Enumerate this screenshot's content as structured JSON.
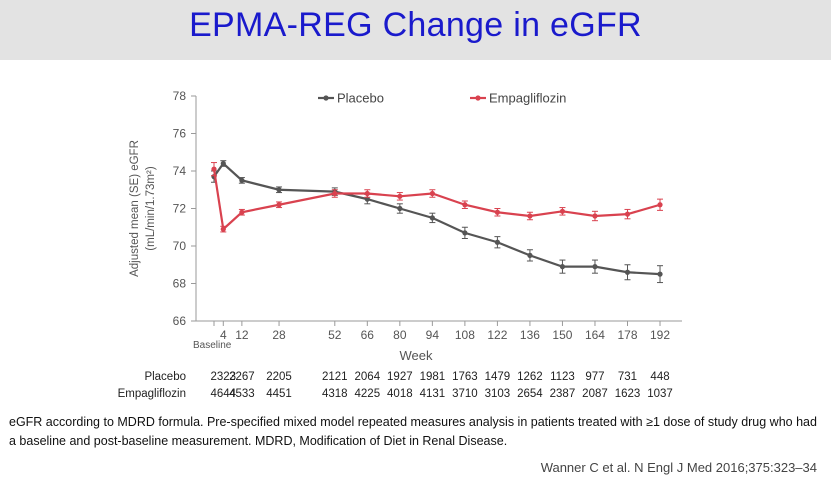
{
  "page": {
    "title": "EPMA-REG Change in eGFR",
    "footnote": "eGFR according to MDRD formula. Pre-specified mixed model repeated measures analysis in patients treated with ≥1 dose of study drug who had a baseline and post-baseline measurement. MDRD, Modification of Diet in Renal Disease.",
    "citation": "Wanner C et al. N Engl J Med 2016;375:323–34"
  },
  "chart_data": {
    "type": "line",
    "ylabel_line1": "Adjusted mean (SE) eGFR",
    "ylabel_line2": "(mL/min/1.73m²)",
    "xlabel": "Week",
    "baseline_label": "Baseline",
    "ylim": [
      66,
      78
    ],
    "yticks": [
      66,
      68,
      70,
      72,
      74,
      76,
      78
    ],
    "x": [
      0,
      4,
      12,
      28,
      52,
      66,
      80,
      94,
      108,
      122,
      136,
      150,
      164,
      178,
      192
    ],
    "xtick_values": [
      4,
      12,
      28,
      52,
      66,
      80,
      94,
      108,
      122,
      136,
      150,
      164,
      178,
      192
    ],
    "legend_position": "top",
    "grid": false,
    "series": [
      {
        "name": "Placebo",
        "color": "#555555",
        "values": [
          73.7,
          74.4,
          73.5,
          73.0,
          72.9,
          72.5,
          72.0,
          71.5,
          70.7,
          70.2,
          69.5,
          68.9,
          68.9,
          68.6,
          68.5
        ],
        "err": [
          0.3,
          0.15,
          0.15,
          0.15,
          0.2,
          0.25,
          0.25,
          0.25,
          0.3,
          0.3,
          0.3,
          0.35,
          0.35,
          0.4,
          0.45
        ]
      },
      {
        "name": "Empagliflozin",
        "color": "#d9424f",
        "values": [
          74.1,
          70.9,
          71.8,
          72.2,
          72.8,
          72.8,
          72.65,
          72.8,
          72.2,
          71.8,
          71.6,
          71.85,
          71.6,
          71.7,
          72.2
        ],
        "err": [
          0.35,
          0.15,
          0.15,
          0.15,
          0.2,
          0.2,
          0.2,
          0.2,
          0.2,
          0.2,
          0.2,
          0.2,
          0.25,
          0.25,
          0.3
        ]
      }
    ],
    "number_at_risk": {
      "rows": [
        {
          "label": "Placebo",
          "values": [
            "2323",
            "2267",
            "2205",
            "2121",
            "2064",
            "1927",
            "1981",
            "1763",
            "1479",
            "1262",
            "1123",
            "977",
            "731",
            "448"
          ],
          "weeks": [
            4,
            12,
            28,
            52,
            66,
            80,
            94,
            108,
            122,
            136,
            150,
            164,
            178,
            192
          ]
        },
        {
          "label": "Empagliflozin",
          "values": [
            "4644",
            "4533",
            "4451",
            "4318",
            "4225",
            "4018",
            "4131",
            "3710",
            "3103",
            "2654",
            "2387",
            "2087",
            "1623",
            "1037"
          ],
          "weeks": [
            4,
            12,
            28,
            52,
            66,
            80,
            94,
            108,
            122,
            136,
            150,
            164,
            178,
            192
          ]
        }
      ]
    }
  }
}
